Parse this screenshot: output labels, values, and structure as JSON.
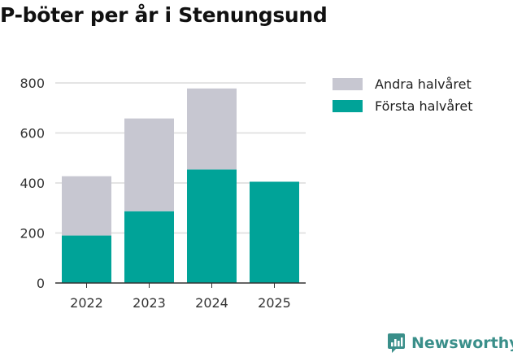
{
  "title": "P-böter per år i Stenungsund",
  "colors": {
    "first_half": "#00a398",
    "second_half": "#c7c7d1",
    "brand": "#3a8f8a"
  },
  "brand": {
    "name": "Newsworthy",
    "icon": "newsworthy-logo-icon"
  },
  "chart_data": {
    "type": "bar",
    "stacked": true,
    "title": "P-böter per år i Stenungsund",
    "categories": [
      "2022",
      "2023",
      "2024",
      "2025"
    ],
    "series": [
      {
        "name": "Första halvåret",
        "values": [
          190,
          287,
          454,
          405
        ]
      },
      {
        "name": "Andra halvåret",
        "values": [
          237,
          371,
          324,
          0
        ]
      }
    ],
    "xlabel": "",
    "ylabel": "",
    "ylim": [
      0,
      800
    ],
    "yticks": [
      0,
      200,
      400,
      600,
      800
    ],
    "grid": true,
    "legend": {
      "position": "top-right",
      "entries": [
        "Andra halvåret",
        "Första halvåret"
      ]
    }
  }
}
